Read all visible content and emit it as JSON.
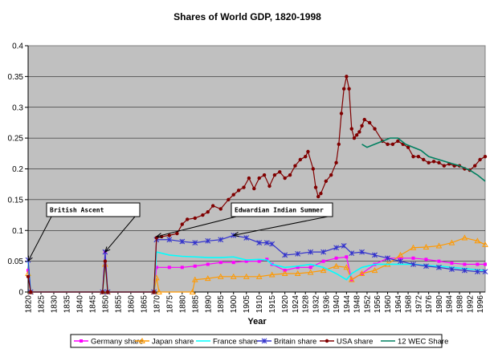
{
  "chart_data": {
    "type": "line",
    "title": "Shares of World GDP, 1820-1998",
    "xlabel": "Year",
    "ylabel": "",
    "xlim": [
      1820,
      1998
    ],
    "ylim": [
      0,
      0.4
    ],
    "yticks": [
      "0",
      "0.05",
      "0.1",
      "0.15",
      "0.2",
      "0.25",
      "0.3",
      "0.35",
      "0.4"
    ],
    "xticks": [
      "1820",
      "1825",
      "1830",
      "1835",
      "1840",
      "1845",
      "1850",
      "1855",
      "1860",
      "1865",
      "1870",
      "1875",
      "1880",
      "1885",
      "1890",
      "1895",
      "1900",
      "1905",
      "1910",
      "1915",
      "1920",
      "1924",
      "1928",
      "1932",
      "1936",
      "1940",
      "1944",
      "1948",
      "1952",
      "1956",
      "1960",
      "1964",
      "1968",
      "1972",
      "1976",
      "1980",
      "1984",
      "1988",
      "1992",
      "1996"
    ],
    "plot_background": "#c0c0c0",
    "grid": "horizontal",
    "legend_position": "bottom",
    "annotations": [
      {
        "text": "British Ascent",
        "arrows_to": [
          [
            1820,
            0.05
          ],
          [
            1850,
            0.065
          ]
        ]
      },
      {
        "text": "Edwardian Indian Summer",
        "arrows_to": [
          [
            1870,
            0.09
          ],
          [
            1900,
            0.092
          ]
        ]
      }
    ],
    "series": [
      {
        "name": "Germany share",
        "color": "#ff00ff",
        "marker": "square",
        "points": [
          [
            1820,
            0.035
          ],
          [
            1821,
            0.0
          ],
          [
            1849,
            0.0
          ],
          [
            1850,
            0.065
          ],
          [
            1851,
            0.0
          ],
          [
            1869,
            0.0
          ],
          [
            1870,
            0.04
          ],
          [
            1875,
            0.04
          ],
          [
            1880,
            0.04
          ],
          [
            1885,
            0.042
          ],
          [
            1890,
            0.045
          ],
          [
            1895,
            0.048
          ],
          [
            1900,
            0.048
          ],
          [
            1905,
            0.05
          ],
          [
            1910,
            0.05
          ],
          [
            1913,
            0.053
          ],
          [
            1915,
            0.045
          ],
          [
            1920,
            0.035
          ],
          [
            1925,
            0.04
          ],
          [
            1930,
            0.04
          ],
          [
            1935,
            0.05
          ],
          [
            1940,
            0.055
          ],
          [
            1944,
            0.057
          ],
          [
            1946,
            0.02
          ],
          [
            1950,
            0.03
          ],
          [
            1955,
            0.045
          ],
          [
            1960,
            0.055
          ],
          [
            1965,
            0.055
          ],
          [
            1970,
            0.055
          ],
          [
            1975,
            0.053
          ],
          [
            1980,
            0.05
          ],
          [
            1985,
            0.047
          ],
          [
            1990,
            0.045
          ],
          [
            1995,
            0.045
          ],
          [
            1998,
            0.045
          ]
        ]
      },
      {
        "name": "Japan share",
        "color": "#ff9900",
        "marker": "triangle",
        "points": [
          [
            1820,
            0.03
          ],
          [
            1821,
            0.0
          ],
          [
            1849,
            0.0
          ],
          [
            1850,
            0.045
          ],
          [
            1851,
            0.0
          ],
          [
            1869,
            0.0
          ],
          [
            1870,
            0.023
          ],
          [
            1871,
            0.0
          ],
          [
            1884,
            0.0
          ],
          [
            1885,
            0.02
          ],
          [
            1890,
            0.022
          ],
          [
            1895,
            0.025
          ],
          [
            1900,
            0.025
          ],
          [
            1905,
            0.025
          ],
          [
            1910,
            0.025
          ],
          [
            1915,
            0.028
          ],
          [
            1920,
            0.03
          ],
          [
            1925,
            0.03
          ],
          [
            1930,
            0.032
          ],
          [
            1935,
            0.035
          ],
          [
            1940,
            0.042
          ],
          [
            1944,
            0.04
          ],
          [
            1946,
            0.02
          ],
          [
            1950,
            0.03
          ],
          [
            1955,
            0.035
          ],
          [
            1960,
            0.045
          ],
          [
            1965,
            0.06
          ],
          [
            1970,
            0.072
          ],
          [
            1975,
            0.073
          ],
          [
            1980,
            0.075
          ],
          [
            1985,
            0.08
          ],
          [
            1990,
            0.088
          ],
          [
            1995,
            0.083
          ],
          [
            1998,
            0.077
          ]
        ]
      },
      {
        "name": "France share",
        "color": "#00ffff",
        "marker": "none",
        "points": [
          [
            1820,
            0.05
          ],
          [
            1821,
            0.0
          ],
          [
            1849,
            0.0
          ],
          [
            1850,
            0.05
          ],
          [
            1851,
            0.0
          ],
          [
            1869,
            0.0
          ],
          [
            1870,
            0.065
          ],
          [
            1875,
            0.06
          ],
          [
            1880,
            0.058
          ],
          [
            1885,
            0.057
          ],
          [
            1890,
            0.056
          ],
          [
            1895,
            0.056
          ],
          [
            1900,
            0.057
          ],
          [
            1905,
            0.052
          ],
          [
            1910,
            0.053
          ],
          [
            1913,
            0.052
          ],
          [
            1915,
            0.045
          ],
          [
            1920,
            0.04
          ],
          [
            1925,
            0.042
          ],
          [
            1930,
            0.045
          ],
          [
            1935,
            0.04
          ],
          [
            1940,
            0.03
          ],
          [
            1944,
            0.02
          ],
          [
            1946,
            0.03
          ],
          [
            1950,
            0.04
          ],
          [
            1955,
            0.045
          ],
          [
            1960,
            0.045
          ],
          [
            1965,
            0.045
          ],
          [
            1970,
            0.045
          ],
          [
            1975,
            0.043
          ],
          [
            1980,
            0.042
          ],
          [
            1985,
            0.04
          ],
          [
            1990,
            0.038
          ],
          [
            1995,
            0.036
          ],
          [
            1998,
            0.035
          ]
        ]
      },
      {
        "name": "Britain share",
        "color": "#3333cc",
        "marker": "x",
        "points": [
          [
            1820,
            0.052
          ],
          [
            1821,
            0.0
          ],
          [
            1849,
            0.0
          ],
          [
            1850,
            0.065
          ],
          [
            1851,
            0.0
          ],
          [
            1869,
            0.0
          ],
          [
            1870,
            0.085
          ],
          [
            1875,
            0.085
          ],
          [
            1880,
            0.082
          ],
          [
            1885,
            0.08
          ],
          [
            1890,
            0.083
          ],
          [
            1895,
            0.085
          ],
          [
            1900,
            0.092
          ],
          [
            1905,
            0.088
          ],
          [
            1910,
            0.08
          ],
          [
            1913,
            0.08
          ],
          [
            1915,
            0.078
          ],
          [
            1920,
            0.06
          ],
          [
            1925,
            0.062
          ],
          [
            1930,
            0.065
          ],
          [
            1935,
            0.065
          ],
          [
            1940,
            0.072
          ],
          [
            1943,
            0.075
          ],
          [
            1946,
            0.063
          ],
          [
            1950,
            0.065
          ],
          [
            1955,
            0.06
          ],
          [
            1960,
            0.055
          ],
          [
            1965,
            0.05
          ],
          [
            1970,
            0.045
          ],
          [
            1975,
            0.042
          ],
          [
            1980,
            0.04
          ],
          [
            1985,
            0.037
          ],
          [
            1990,
            0.035
          ],
          [
            1995,
            0.033
          ],
          [
            1998,
            0.033
          ]
        ]
      },
      {
        "name": "USA share",
        "color": "#800000",
        "marker": "circle",
        "points": [
          [
            1820,
            0.025
          ],
          [
            1821,
            0.0
          ],
          [
            1849,
            0.0
          ],
          [
            1850,
            0.05
          ],
          [
            1851,
            0.0
          ],
          [
            1869,
            0.0
          ],
          [
            1870,
            0.088
          ],
          [
            1872,
            0.09
          ],
          [
            1875,
            0.092
          ],
          [
            1878,
            0.095
          ],
          [
            1880,
            0.11
          ],
          [
            1882,
            0.118
          ],
          [
            1885,
            0.12
          ],
          [
            1888,
            0.125
          ],
          [
            1890,
            0.13
          ],
          [
            1892,
            0.14
          ],
          [
            1895,
            0.135
          ],
          [
            1898,
            0.15
          ],
          [
            1900,
            0.158
          ],
          [
            1902,
            0.165
          ],
          [
            1904,
            0.17
          ],
          [
            1906,
            0.185
          ],
          [
            1908,
            0.168
          ],
          [
            1910,
            0.185
          ],
          [
            1912,
            0.19
          ],
          [
            1914,
            0.172
          ],
          [
            1916,
            0.19
          ],
          [
            1918,
            0.195
          ],
          [
            1920,
            0.185
          ],
          [
            1922,
            0.19
          ],
          [
            1924,
            0.205
          ],
          [
            1926,
            0.215
          ],
          [
            1928,
            0.22
          ],
          [
            1929,
            0.228
          ],
          [
            1931,
            0.2
          ],
          [
            1932,
            0.17
          ],
          [
            1933,
            0.155
          ],
          [
            1934,
            0.16
          ],
          [
            1936,
            0.18
          ],
          [
            1938,
            0.19
          ],
          [
            1940,
            0.21
          ],
          [
            1941,
            0.24
          ],
          [
            1942,
            0.29
          ],
          [
            1943,
            0.33
          ],
          [
            1944,
            0.35
          ],
          [
            1945,
            0.33
          ],
          [
            1946,
            0.265
          ],
          [
            1947,
            0.25
          ],
          [
            1948,
            0.255
          ],
          [
            1949,
            0.26
          ],
          [
            1950,
            0.27
          ],
          [
            1951,
            0.28
          ],
          [
            1953,
            0.275
          ],
          [
            1955,
            0.265
          ],
          [
            1958,
            0.245
          ],
          [
            1960,
            0.24
          ],
          [
            1962,
            0.24
          ],
          [
            1964,
            0.245
          ],
          [
            1966,
            0.24
          ],
          [
            1968,
            0.235
          ],
          [
            1970,
            0.22
          ],
          [
            1972,
            0.22
          ],
          [
            1974,
            0.215
          ],
          [
            1976,
            0.21
          ],
          [
            1978,
            0.212
          ],
          [
            1980,
            0.21
          ],
          [
            1982,
            0.205
          ],
          [
            1984,
            0.208
          ],
          [
            1986,
            0.205
          ],
          [
            1988,
            0.205
          ],
          [
            1990,
            0.2
          ],
          [
            1992,
            0.198
          ],
          [
            1994,
            0.205
          ],
          [
            1996,
            0.215
          ],
          [
            1998,
            0.22
          ]
        ]
      },
      {
        "name": "12 WEC Share",
        "color": "#008060",
        "marker": "none",
        "points": [
          [
            1950,
            0.24
          ],
          [
            1952,
            0.235
          ],
          [
            1955,
            0.24
          ],
          [
            1958,
            0.245
          ],
          [
            1961,
            0.25
          ],
          [
            1964,
            0.25
          ],
          [
            1967,
            0.24
          ],
          [
            1970,
            0.235
          ],
          [
            1973,
            0.23
          ],
          [
            1976,
            0.22
          ],
          [
            1980,
            0.215
          ],
          [
            1984,
            0.21
          ],
          [
            1988,
            0.205
          ],
          [
            1992,
            0.198
          ],
          [
            1995,
            0.19
          ],
          [
            1998,
            0.18
          ]
        ]
      }
    ]
  }
}
